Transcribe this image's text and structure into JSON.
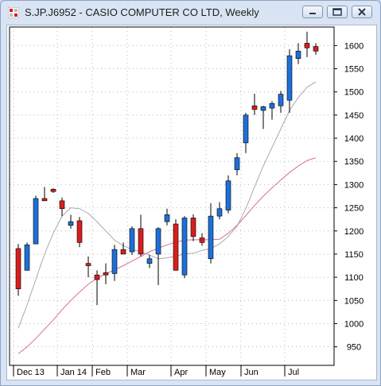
{
  "window": {
    "title": "S.JP.J6952 - CASIO COMPUTER CO LTD, Weekly",
    "buttons": [
      "minimize",
      "maximize",
      "close"
    ]
  },
  "colors": {
    "up_candle": "#1e6fd9",
    "down_candle": "#d81e1e",
    "ma_short": "#a8a8a8",
    "ma_long": "#d6709a",
    "grid": "#b8b8b8"
  },
  "chart_data": {
    "type": "candlestick",
    "title": "S.JP.J6952 - CASIO COMPUTER CO LTD, Weekly",
    "ylim": [
      910,
      1640
    ],
    "y_ticks": [
      950,
      1000,
      1050,
      1100,
      1150,
      1200,
      1250,
      1300,
      1350,
      1400,
      1450,
      1500,
      1550,
      1600
    ],
    "x_labels": [
      {
        "label": "Dec 13",
        "index": 0
      },
      {
        "label": "Jan 14",
        "index": 5
      },
      {
        "label": "Feb",
        "index": 9
      },
      {
        "label": "Mar",
        "index": 13
      },
      {
        "label": "Apr",
        "index": 18
      },
      {
        "label": "May",
        "index": 22
      },
      {
        "label": "Jun",
        "index": 26
      },
      {
        "label": "Jul",
        "index": 31
      }
    ],
    "grid": true,
    "candles": [
      {
        "open": 1162,
        "high": 1172,
        "low": 1060,
        "close": 1075
      },
      {
        "open": 1115,
        "high": 1175,
        "low": 1115,
        "close": 1170
      },
      {
        "open": 1172,
        "high": 1276,
        "low": 1172,
        "close": 1270
      },
      {
        "open": 1270,
        "high": 1295,
        "low": 1265,
        "close": 1265
      },
      {
        "open": 1290,
        "high": 1292,
        "low": 1282,
        "close": 1285
      },
      {
        "open": 1265,
        "high": 1272,
        "low": 1232,
        "close": 1248
      },
      {
        "open": 1212,
        "high": 1235,
        "low": 1205,
        "close": 1220
      },
      {
        "open": 1222,
        "high": 1230,
        "low": 1165,
        "close": 1175
      },
      {
        "open": 1130,
        "high": 1145,
        "low": 1100,
        "close": 1125
      },
      {
        "open": 1105,
        "high": 1115,
        "low": 1040,
        "close": 1095
      },
      {
        "open": 1110,
        "high": 1130,
        "low": 1085,
        "close": 1105
      },
      {
        "open": 1108,
        "high": 1170,
        "low": 1092,
        "close": 1160
      },
      {
        "open": 1160,
        "high": 1175,
        "low": 1150,
        "close": 1150
      },
      {
        "open": 1155,
        "high": 1210,
        "low": 1148,
        "close": 1205
      },
      {
        "open": 1205,
        "high": 1235,
        "low": 1145,
        "close": 1150
      },
      {
        "open": 1130,
        "high": 1148,
        "low": 1120,
        "close": 1140
      },
      {
        "open": 1150,
        "high": 1208,
        "low": 1083,
        "close": 1205
      },
      {
        "open": 1220,
        "high": 1248,
        "low": 1212,
        "close": 1235
      },
      {
        "open": 1215,
        "high": 1225,
        "low": 1115,
        "close": 1115
      },
      {
        "open": 1105,
        "high": 1232,
        "low": 1098,
        "close": 1228
      },
      {
        "open": 1228,
        "high": 1236,
        "low": 1178,
        "close": 1188
      },
      {
        "open": 1185,
        "high": 1195,
        "low": 1168,
        "close": 1175
      },
      {
        "open": 1140,
        "high": 1260,
        "low": 1130,
        "close": 1232
      },
      {
        "open": 1232,
        "high": 1262,
        "low": 1225,
        "close": 1248
      },
      {
        "open": 1245,
        "high": 1320,
        "low": 1238,
        "close": 1308
      },
      {
        "open": 1332,
        "high": 1368,
        "low": 1320,
        "close": 1358
      },
      {
        "open": 1390,
        "high": 1455,
        "low": 1368,
        "close": 1450
      },
      {
        "open": 1470,
        "high": 1496,
        "low": 1450,
        "close": 1462
      },
      {
        "open": 1460,
        "high": 1470,
        "low": 1420,
        "close": 1468
      },
      {
        "open": 1465,
        "high": 1480,
        "low": 1440,
        "close": 1475
      },
      {
        "open": 1470,
        "high": 1502,
        "low": 1455,
        "close": 1495
      },
      {
        "open": 1482,
        "high": 1592,
        "low": 1455,
        "close": 1578
      },
      {
        "open": 1572,
        "high": 1605,
        "low": 1560,
        "close": 1588
      },
      {
        "open": 1605,
        "high": 1630,
        "low": 1575,
        "close": 1595
      },
      {
        "open": 1598,
        "high": 1605,
        "low": 1580,
        "close": 1588
      }
    ],
    "ma_short": [
      990,
      1040,
      1095,
      1150,
      1195,
      1232,
      1250,
      1248,
      1238,
      1220,
      1200,
      1180,
      1168,
      1160,
      1155,
      1148,
      1140,
      1142,
      1146,
      1150,
      1152,
      1158,
      1162,
      1172,
      1188,
      1210,
      1248,
      1295,
      1340,
      1380,
      1420,
      1460,
      1488,
      1510,
      1522
    ],
    "ma_long": [
      935,
      950,
      968,
      988,
      1008,
      1030,
      1050,
      1068,
      1085,
      1098,
      1108,
      1116,
      1125,
      1135,
      1145,
      1155,
      1163,
      1170,
      1176,
      1180,
      1181,
      1181,
      1181,
      1182,
      1195,
      1212,
      1233,
      1255,
      1275,
      1293,
      1310,
      1326,
      1340,
      1352,
      1358
    ]
  }
}
